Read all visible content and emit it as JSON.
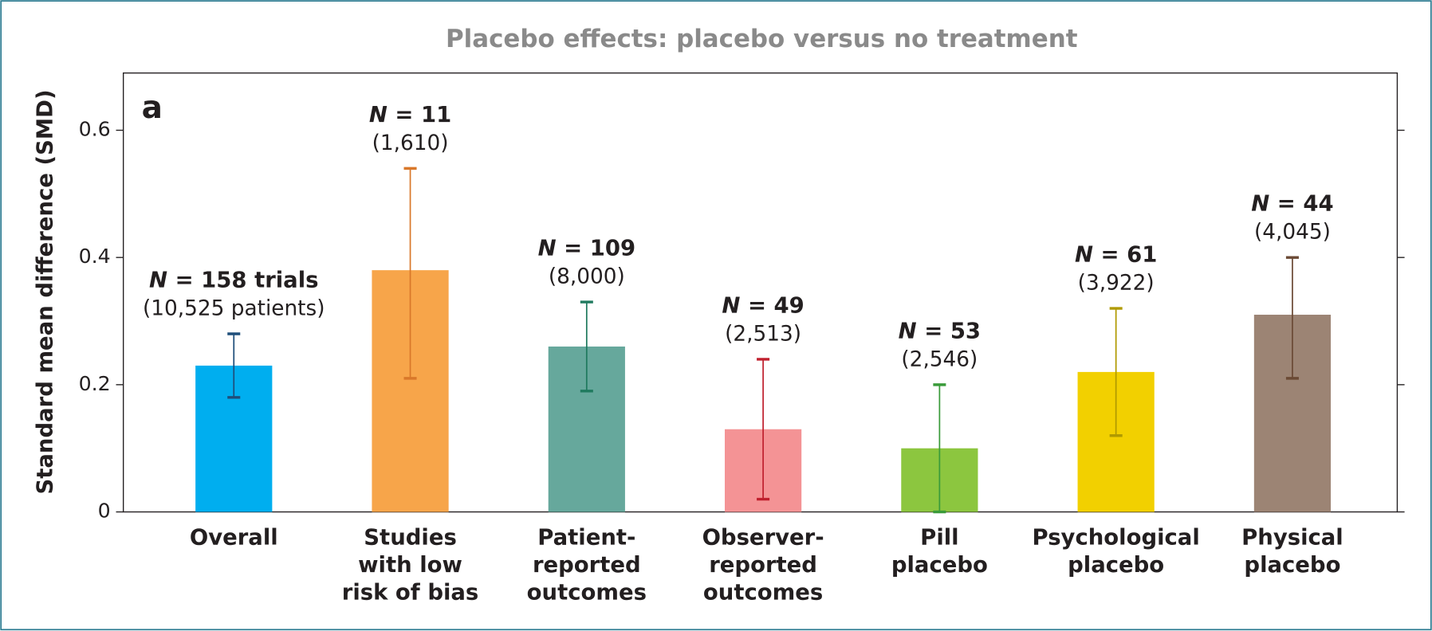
{
  "chart_data": {
    "type": "bar",
    "title": "Placebo effects: placebo versus no treatment",
    "panel_label": "a",
    "y_label": "Standard mean difference (SMD)",
    "categories": [
      [
        "Overall"
      ],
      [
        "Studies",
        "with low",
        "risk of bias"
      ],
      [
        "Patient-",
        "reported",
        "outcomes"
      ],
      [
        "Observer-",
        "reported",
        "outcomes"
      ],
      [
        "Pill",
        "placebo"
      ],
      [
        "Psychological",
        "placebo"
      ],
      [
        "Physical",
        "placebo"
      ]
    ],
    "values": [
      0.23,
      0.38,
      0.26,
      0.13,
      0.1,
      0.22,
      0.31
    ],
    "ci_high": [
      0.28,
      0.54,
      0.33,
      0.24,
      0.2,
      0.32,
      0.4
    ],
    "ci_low": [
      0.18,
      0.21,
      0.19,
      0.02,
      0.0,
      0.12,
      0.21
    ],
    "colors": [
      "#00aeef",
      "#f7a54a",
      "#66a89c",
      "#f49395",
      "#8cc63f",
      "#f2d000",
      "#9c8474"
    ],
    "error_colors": [
      "#1f4e7a",
      "#d9782a",
      "#1f7a5e",
      "#c0202e",
      "#3a9b3a",
      "#b09a00",
      "#6b4a35"
    ],
    "annotations": [
      [
        "N = 158 trials",
        "(10,525 patients)"
      ],
      [
        "N = 11",
        "(1,610)"
      ],
      [
        "N = 109",
        "(8,000)"
      ],
      [
        "N = 49",
        "(2,513)"
      ],
      [
        "N = 53",
        "(2,546)"
      ],
      [
        "N = 61",
        "(3,922)"
      ],
      [
        "N = 44",
        "(4,045)"
      ]
    ],
    "ylim": [
      0,
      0.69
    ],
    "yticks": [
      0,
      0.2,
      0.4,
      0.6
    ],
    "grid": false
  }
}
